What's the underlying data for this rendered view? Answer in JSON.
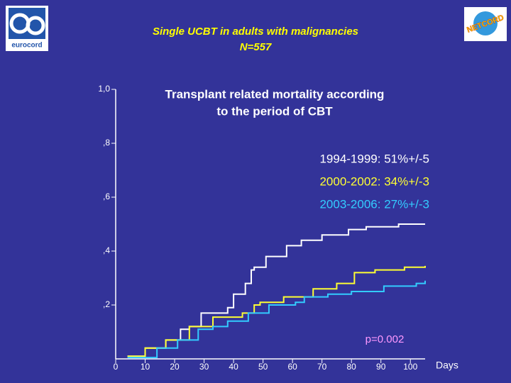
{
  "chart_data": {
    "type": "step",
    "title": "Single UCBT in adults with malignancies",
    "subtitle": "N=557",
    "plot_title": [
      "Transplant related mortality according",
      "to the period of CBT"
    ],
    "x_label": "Days",
    "annotation": "p=0.002",
    "logos": [
      "eurocord",
      "NETCORD"
    ],
    "xlim": [
      0,
      105
    ],
    "xticks": [
      0,
      10,
      20,
      30,
      40,
      50,
      60,
      70,
      80,
      90,
      100
    ],
    "ylim": [
      0,
      1
    ],
    "yticks": [
      {
        "value": 0.2,
        "label": ",2"
      },
      {
        "value": 0.4,
        "label": ",4"
      },
      {
        "value": 0.6,
        "label": ",6"
      },
      {
        "value": 0.8,
        "label": ",8"
      },
      {
        "value": 1.0,
        "label": "1,0"
      }
    ],
    "series": [
      {
        "name": "1994-1999: 51%+/-5",
        "color": "#ffffff",
        "x": [
          4,
          10,
          17,
          22,
          25,
          29,
          38,
          40,
          44,
          46,
          47,
          51,
          58,
          63,
          70,
          79,
          85,
          96,
          105
        ],
        "values": [
          0.01,
          0.04,
          0.07,
          0.11,
          0.12,
          0.17,
          0.19,
          0.24,
          0.28,
          0.33,
          0.34,
          0.38,
          0.42,
          0.44,
          0.46,
          0.48,
          0.49,
          0.5,
          0.5
        ]
      },
      {
        "name": "2000-2002: 34%+/-3",
        "color": "#ffff33",
        "x": [
          4,
          10,
          17,
          25,
          33,
          43,
          47,
          49,
          57,
          67,
          75,
          81,
          88,
          98,
          105
        ],
        "values": [
          0.01,
          0.04,
          0.07,
          0.12,
          0.155,
          0.17,
          0.2,
          0.21,
          0.23,
          0.26,
          0.28,
          0.32,
          0.33,
          0.34,
          0.345
        ]
      },
      {
        "name": "2003-2006: 27%+/-3",
        "color": "#33ccff",
        "x": [
          4,
          14,
          21,
          28,
          33,
          38,
          45,
          52,
          61,
          64,
          72,
          80,
          91,
          102,
          105
        ],
        "values": [
          0.005,
          0.04,
          0.07,
          0.11,
          0.12,
          0.14,
          0.17,
          0.2,
          0.21,
          0.23,
          0.24,
          0.25,
          0.27,
          0.28,
          0.29
        ]
      }
    ]
  }
}
